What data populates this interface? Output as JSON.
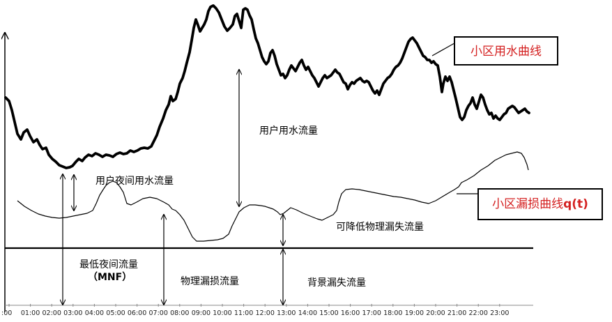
{
  "labels": {
    "usage_curve": "小区用水曲线",
    "leak_curve": "小区漏损曲线",
    "leak_curve_suffix": "q(t)",
    "user_flow": "用户用水流量",
    "night_user_flow": "用户夜间用水流量",
    "reducible_leak": "可降低物理漏失流量",
    "mnf_line1": "最低夜间流量",
    "mnf_line2": "（MNF）",
    "physical_leak": "物理漏损流量",
    "background_leak": "背景漏失流量"
  },
  "time_axis": {
    "ticks": [
      ":00",
      "01:00",
      "02:00",
      "03:00",
      "04:00",
      "05:00",
      "06:00",
      "07:00",
      "08:00",
      "09:00",
      "10:00",
      "11:00",
      "12:00",
      "13:00",
      "14:00",
      "15:00",
      "16:00",
      "17:00",
      "18:00",
      "19:00",
      "20:00",
      "21:00",
      "22:00",
      "23:00"
    ]
  },
  "colors": {
    "box_text": "#d42020",
    "line": "#000000"
  }
}
